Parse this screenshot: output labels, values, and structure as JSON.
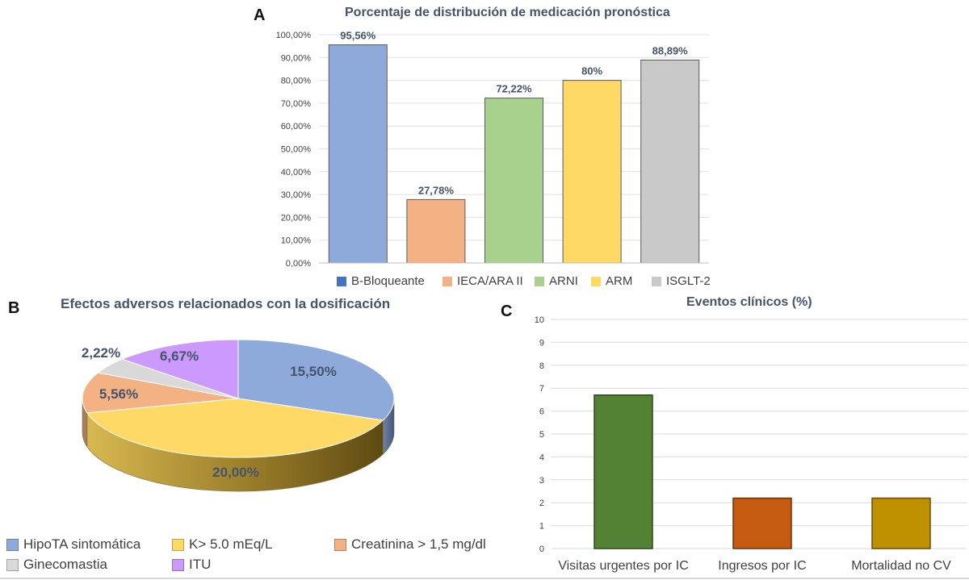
{
  "chart_data": [
    {
      "id": "A",
      "type": "bar",
      "panel_label": "A",
      "title": "Porcentaje de distribución de medicación pronóstica",
      "categories": [
        "B-Bloqueante",
        "IECA/ARA II",
        "ARNI",
        "ARM",
        "ISGLT-2"
      ],
      "values": [
        95.56,
        27.78,
        72.22,
        80,
        88.89
      ],
      "data_labels": [
        "95,56%",
        "27,78%",
        "72,22%",
        "80%",
        "88,89%"
      ],
      "colors": [
        "#8eaadb",
        "#f4b183",
        "#a9d18e",
        "#ffd966",
        "#c9c9c9"
      ],
      "legend_colors": [
        "#4472c4",
        "#f4b183",
        "#a9d18e",
        "#ffd966",
        "#c9c9c9"
      ],
      "ylim": [
        0,
        100
      ],
      "yticks": [
        0,
        10,
        20,
        30,
        40,
        50,
        60,
        70,
        80,
        90,
        100
      ],
      "ytick_labels": [
        "0,00%",
        "10,00%",
        "20,00%",
        "30,00%",
        "40,00%",
        "50,00%",
        "60,00%",
        "70,00%",
        "80,00%",
        "90,00%",
        "100,00%"
      ],
      "legend_position": "bottom",
      "grid": true
    },
    {
      "id": "B",
      "type": "pie",
      "panel_label": "B",
      "title": "Efectos adversos relacionados con la dosificación",
      "categories": [
        "HipoTA sintomática",
        "K> 5.0 mEq/L",
        "Creatinina > 1,5 mg/dl",
        "Ginecomastia",
        "ITU"
      ],
      "values": [
        15.5,
        20.0,
        5.56,
        2.22,
        6.67
      ],
      "data_labels": [
        "15,50%",
        "20,00%",
        "5,56%",
        "2,22%",
        "6,67%"
      ],
      "colors": [
        "#8eaadb",
        "#ffd966",
        "#f4b183",
        "#d9d9d9",
        "#cc99ff"
      ],
      "style": "3d",
      "legend_position": "bottom"
    },
    {
      "id": "C",
      "type": "bar",
      "panel_label": "C",
      "title": "Eventos clínicos (%)",
      "categories": [
        "Visitas urgentes por IC",
        "Ingresos por IC",
        "Mortalidad no CV"
      ],
      "values": [
        6.7,
        2.2,
        2.2
      ],
      "colors": [
        "#548235",
        "#c55a11",
        "#bf9000"
      ],
      "ylim": [
        0,
        10
      ],
      "yticks": [
        0,
        1,
        2,
        3,
        4,
        5,
        6,
        7,
        8,
        9,
        10
      ],
      "ytick_labels": [
        "0",
        "1",
        "2",
        "3",
        "4",
        "5",
        "6",
        "7",
        "8",
        "9",
        "10"
      ],
      "grid": true
    }
  ]
}
